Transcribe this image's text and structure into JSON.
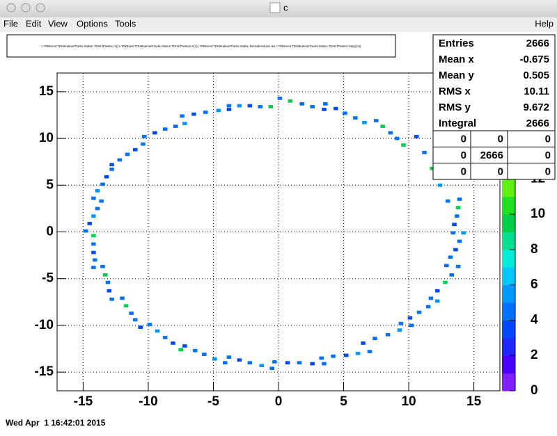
{
  "window": {
    "title": "c",
    "menu": [
      "File",
      "Edit",
      "View",
      "Options",
      "Tools"
    ],
    "help": "Help",
    "status": "Wed Apr  1 16:42:01 2015"
  },
  "chart_data": {
    "type": "heatmap",
    "title": "c.TDkEvent.TDHitKalmanTracks.Station.TDHit.fPosition.Y():c.TDkEvent.TDHitKalmanTracks.Station.TDHit.fPosition.X() {c.TDkEvent.TDHitKalmanTracks.Station.fIsInsideVolume && c.TDkEvent.TDHitKalmanTracks.Station.TDHit.fPosition.Step()>0}",
    "x": [
      -3.8,
      -3.0,
      -2.2,
      -1.4,
      -0.6,
      -7.4,
      -6.5,
      -5.6,
      -4.6,
      -3.8,
      -10.3,
      -9.5,
      -8.7,
      -7.9,
      -7.2,
      -12.8,
      -12.2,
      -11.6,
      -11.0,
      -10.4,
      -14.2,
      -13.9,
      -13.5,
      -13.2,
      -12.8,
      -14.8,
      -14.5,
      -14.2,
      -13.9,
      -13.6,
      -14.2,
      -14.2,
      -14.2,
      -14.1,
      -14.2,
      -13.5,
      -13.3,
      -13.1,
      -13.0,
      -12.8,
      -12.0,
      -11.7,
      -11.3,
      -11.0,
      -10.6,
      -9.9,
      -9.3,
      -8.7,
      -8.1,
      -7.5,
      -7.2,
      -6.4,
      -5.7,
      -4.9,
      -4.1,
      -3.8,
      -3.0,
      -2.2,
      -1.3,
      -0.5,
      -0.3,
      0.7,
      1.6,
      2.6,
      3.5,
      3.3,
      4.2,
      5.2,
      6.1,
      7.0,
      6.5,
      7.4,
      8.4,
      9.3,
      10.2,
      9.4,
      10.1,
      10.8,
      11.5,
      12.2,
      11.7,
      12.2,
      12.8,
      13.3,
      13.8,
      12.9,
      13.2,
      13.6,
      13.9,
      14.2,
      13.4,
      13.5,
      13.7,
      13.8,
      13.9,
      13.0,
      12.4,
      11.8,
      11.2,
      10.6,
      7.5,
      8.0,
      8.6,
      9.1,
      9.6,
      3.6,
      4.4,
      5.1,
      5.9,
      6.6,
      0.1,
      0.9,
      1.8,
      2.6,
      3.5
    ],
    "y": [
      13.5,
      13.5,
      13.5,
      13.4,
      13.4,
      12.4,
      12.6,
      12.8,
      13.0,
      13.1,
      10.2,
      10.6,
      11.0,
      11.3,
      11.6,
      7.2,
      7.7,
      8.3,
      8.8,
      9.4,
      3.6,
      4.4,
      5.1,
      5.9,
      6.7,
      0.1,
      0.9,
      1.7,
      2.5,
      3.3,
      -0.4,
      -1.3,
      -2.2,
      -3.0,
      -3.8,
      -3.7,
      -4.6,
      -5.4,
      -6.3,
      -7.2,
      -7.1,
      -7.9,
      -8.7,
      -9.4,
      -10.2,
      -9.9,
      -10.6,
      -11.3,
      -11.9,
      -12.6,
      -12.2,
      -12.7,
      -13.1,
      -13.6,
      -14.0,
      -13.4,
      -13.7,
      -14.0,
      -14.3,
      -14.6,
      -13.9,
      -14.0,
      -14.0,
      -14.1,
      -14.1,
      -13.5,
      -13.3,
      -13.2,
      -13.0,
      -12.8,
      -11.9,
      -11.4,
      -11.0,
      -10.5,
      -10.0,
      -9.8,
      -9.2,
      -8.6,
      -8.0,
      -7.4,
      -7.1,
      -6.3,
      -5.4,
      -4.6,
      -3.7,
      -3.6,
      -2.7,
      -1.9,
      -1.0,
      -0.1,
      -0.1,
      0.8,
      1.7,
      2.6,
      3.5,
      3.3,
      5.0,
      6.8,
      8.5,
      10.2,
      11.9,
      11.3,
      10.6,
      10.0,
      9.3,
      13.7,
      13.2,
      12.7,
      12.2,
      11.7,
      14.3,
      14.0,
      13.7,
      13.4,
      13.1
    ],
    "values": [
      4,
      5,
      3,
      4,
      9,
      4,
      3,
      4,
      5,
      3,
      4,
      3,
      4,
      4,
      5,
      3,
      4,
      4,
      3,
      4,
      4,
      5,
      4,
      3,
      4,
      4,
      3,
      5,
      4,
      4,
      9,
      4,
      3,
      4,
      4,
      4,
      9,
      4,
      3,
      4,
      4,
      9,
      4,
      4,
      3,
      4,
      5,
      4,
      3,
      9,
      3,
      4,
      4,
      5,
      4,
      4,
      3,
      4,
      5,
      4,
      4,
      3,
      4,
      3,
      4,
      4,
      4,
      3,
      5,
      4,
      3,
      4,
      4,
      5,
      4,
      4,
      3,
      4,
      4,
      5,
      4,
      3,
      9,
      4,
      4,
      4,
      4,
      3,
      4,
      5,
      4,
      3,
      4,
      9,
      4,
      4,
      5,
      9,
      4,
      3,
      4,
      9,
      4,
      4,
      9,
      4,
      3,
      4,
      4,
      5,
      4,
      9,
      4,
      4,
      3
    ],
    "xlim": [
      -17,
      17
    ],
    "ylim": [
      -17,
      17
    ],
    "zlim": [
      0,
      18
    ],
    "xticks": [
      -15,
      -10,
      -5,
      0,
      5,
      10,
      15
    ],
    "yticks": [
      -15,
      -10,
      -5,
      0,
      5,
      10,
      15
    ],
    "zticks": [
      0,
      2,
      4,
      6,
      8,
      10,
      12
    ],
    "grid": true,
    "palette": [
      "#8020ff",
      "#4a00ff",
      "#2028ff",
      "#0048ff",
      "#0070ff",
      "#0098ff",
      "#00c8ff",
      "#00ecd8",
      "#00e090",
      "#00d048",
      "#20e020",
      "#60f010",
      "#a0f000",
      "#e0f000",
      "#ffd000",
      "#ff9000",
      "#ff5000",
      "#ff0000"
    ],
    "stats": [
      {
        "label": "Entries",
        "value": 2666
      },
      {
        "label": "Mean x",
        "value": -0.675
      },
      {
        "label": "Mean y",
        "value": 0.505
      },
      {
        "label": "RMS x",
        "value": 10.11
      },
      {
        "label": "RMS y",
        "value": 9.672
      },
      {
        "label": "Integral",
        "value": 2666
      }
    ],
    "matrix": [
      [
        0,
        0,
        0
      ],
      [
        0,
        2666,
        0
      ],
      [
        0,
        0,
        0
      ]
    ]
  }
}
